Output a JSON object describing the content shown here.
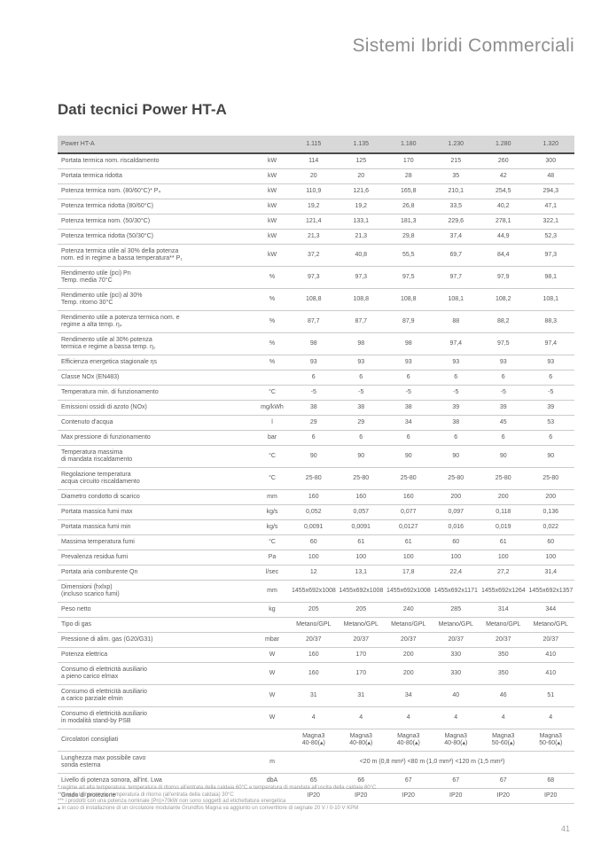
{
  "page": {
    "brand_header": "Sistemi Ibridi Commerciali",
    "section_title": "Dati tecnici Power HT-A",
    "page_number": "41"
  },
  "colors": {
    "table_header_bg": "#d8d8d8",
    "body_text": "#58585a",
    "brand_text": "#8e8e90",
    "header_rule": "#4a4a4c",
    "row_rule": "#cbcbcb"
  },
  "table": {
    "header": {
      "label": "Power HT-A",
      "unit": "",
      "models": [
        "1.115",
        "1.135",
        "1.180",
        "1.230",
        "1.280",
        "1.320"
      ]
    },
    "rows": [
      {
        "label": "Portata termica nom. riscaldamento",
        "unit": "kW",
        "values": [
          "114",
          "125",
          "170",
          "215",
          "260",
          "300"
        ]
      },
      {
        "label": "Portata termica ridotta",
        "unit": "kW",
        "values": [
          "20",
          "20",
          "28",
          "35",
          "42",
          "48"
        ]
      },
      {
        "label": "Potenza termica nom. (80/60°C)* P₄",
        "unit": "kW",
        "values": [
          "110,9",
          "121,6",
          "165,8",
          "210,1",
          "254,5",
          "294,3"
        ]
      },
      {
        "label": "Potenza termica ridotta (80/60°C)",
        "unit": "kW",
        "values": [
          "19,2",
          "19,2",
          "26,8",
          "33,5",
          "40,2",
          "47,1"
        ]
      },
      {
        "label": "Potenza termica nom. (50/30°C)",
        "unit": "kW",
        "values": [
          "121,4",
          "133,1",
          "181,3",
          "229,6",
          "278,1",
          "322,1"
        ]
      },
      {
        "label": "Potenza termica ridotta (50/30°C)",
        "unit": "kW",
        "values": [
          "21,3",
          "21,3",
          "29,8",
          "37,4",
          "44,9",
          "52,3"
        ]
      },
      {
        "label": "Potenza termica utile al 30% della potenza\nnom. ed in regime a bassa temperatura** P₁",
        "unit": "kW",
        "values": [
          "37,2",
          "40,8",
          "55,5",
          "69,7",
          "84,4",
          "97,3"
        ]
      },
      {
        "label": "Rendimento utile (pci) Pn\nTemp. media 70°C",
        "unit": "%",
        "values": [
          "97,3",
          "97,3",
          "97,5",
          "97,7",
          "97,9",
          "98,1"
        ]
      },
      {
        "label": "Rendimento utile (pci) al 30%\nTemp. ritorno 30°C",
        "unit": "%",
        "values": [
          "108,8",
          "108,8",
          "108,8",
          "108,1",
          "108,2",
          "108,1"
        ]
      },
      {
        "label": "Rendimento utile a potenza termica nom. e\nregime a alta temp. η₄",
        "unit": "%",
        "values": [
          "87,7",
          "87,7",
          "87,9",
          "88",
          "88,2",
          "88,3"
        ]
      },
      {
        "label": "Rendimento utile al 30% potenza\ntermica e regime a bassa temp. η₁",
        "unit": "%",
        "values": [
          "98",
          "98",
          "98",
          "97,4",
          "97,5",
          "97,4"
        ]
      },
      {
        "label": "Efficienza energetica stagionale ηs",
        "unit": "%",
        "values": [
          "93",
          "93",
          "93",
          "93",
          "93",
          "93"
        ]
      },
      {
        "label": "Classe NOx (EN483)",
        "unit": "",
        "values": [
          "6",
          "6",
          "6",
          "6",
          "6",
          "6"
        ]
      },
      {
        "label": "Temperatura min. di funzionamento",
        "unit": "°C",
        "values": [
          "-5",
          "-5",
          "-5",
          "-5",
          "-5",
          "-5"
        ]
      },
      {
        "label": "Emissioni ossidi di azoto (NOx)",
        "unit": "mg/kWh",
        "values": [
          "38",
          "38",
          "38",
          "39",
          "39",
          "39"
        ]
      },
      {
        "label": "Contenuto d'acqua",
        "unit": "l",
        "values": [
          "29",
          "29",
          "34",
          "38",
          "45",
          "53"
        ]
      },
      {
        "label": "Max pressione di funzionamento",
        "unit": "bar",
        "values": [
          "6",
          "6",
          "6",
          "6",
          "6",
          "6"
        ]
      },
      {
        "label": "Temperatura massima\ndi mandata riscaldamento",
        "unit": "°C",
        "values": [
          "90",
          "90",
          "90",
          "90",
          "90",
          "90"
        ]
      },
      {
        "label": "Regolazione temperatura\nacqua circuito riscaldamento",
        "unit": "°C",
        "values": [
          "25-80",
          "25-80",
          "25-80",
          "25-80",
          "25-80",
          "25-80"
        ]
      },
      {
        "label": "Diametro condotto di scarico",
        "unit": "mm",
        "values": [
          "160",
          "160",
          "160",
          "200",
          "200",
          "200"
        ]
      },
      {
        "label": "Portata massica fumi max",
        "unit": "kg/s",
        "values": [
          "0,052",
          "0,057",
          "0,077",
          "0,097",
          "0,118",
          "0,136"
        ]
      },
      {
        "label": "Portata massica fumi min",
        "unit": "kg/s",
        "values": [
          "0,0091",
          "0,0091",
          "0,0127",
          "0,016",
          "0,019",
          "0,022"
        ]
      },
      {
        "label": "Massima temperatura fumi",
        "unit": "°C",
        "values": [
          "60",
          "61",
          "61",
          "60",
          "61",
          "60"
        ]
      },
      {
        "label": "Prevalenza residua fumi",
        "unit": "Pa",
        "values": [
          "100",
          "100",
          "100",
          "100",
          "100",
          "100"
        ]
      },
      {
        "label": "Portata aria comburente Qn",
        "unit": "l/sec",
        "values": [
          "12",
          "13,1",
          "17,8",
          "22,4",
          "27,2",
          "31,4"
        ]
      },
      {
        "label": "Dimensioni (hxlxp)\n(incluso scarico fumi)",
        "unit": "mm",
        "values": [
          "1455x692x1008",
          "1455x692x1008",
          "1455x692x1008",
          "1455x692x1171",
          "1455x692x1264",
          "1455x692x1357"
        ]
      },
      {
        "label": "Peso netto",
        "unit": "kg",
        "values": [
          "205",
          "205",
          "240",
          "285",
          "314",
          "344"
        ]
      },
      {
        "label": "Tipo di gas",
        "unit": "",
        "values": [
          "Metano/GPL",
          "Metano/GPL",
          "Metano/GPL",
          "Metano/GPL",
          "Metano/GPL",
          "Metano/GPL"
        ]
      },
      {
        "label": "Pressione di alim. gas (G20/G31)",
        "unit": "mbar",
        "values": [
          "20/37",
          "20/37",
          "20/37",
          "20/37",
          "20/37",
          "20/37"
        ]
      },
      {
        "label": "Potenza elettrica",
        "unit": "W",
        "values": [
          "160",
          "170",
          "200",
          "330",
          "350",
          "410"
        ]
      },
      {
        "label": "Consumo di elettricità ausiliario\na pieno carico elmax",
        "unit": "W",
        "values": [
          "160",
          "170",
          "200",
          "330",
          "350",
          "410"
        ]
      },
      {
        "label": "Consumo di elettricità ausiliario\na carico parziale elmin",
        "unit": "W",
        "values": [
          "31",
          "31",
          "34",
          "40",
          "46",
          "51"
        ]
      },
      {
        "label": "Consumo di elettricità ausiliario\nin modalità stand-by PSB",
        "unit": "W",
        "values": [
          "4",
          "4",
          "4",
          "4",
          "4",
          "4"
        ]
      },
      {
        "label": "Circolatori consigliati",
        "unit": "",
        "values": [
          "Magna3\n40-80(▴)",
          "Magna3\n40-80(▴)",
          "Magna3\n40-80(▴)",
          "Magna3\n40-80(▴)",
          "Magna3\n50-60(▴)",
          "Magna3\n50-60(▴)"
        ]
      },
      {
        "label": "Lunghezza max possibile cavo\nsonda esterna",
        "unit": "m",
        "span_value": "<20 m (0,8 mm²) <80 m (1,0 mm²) <120 m (1,5 mm²)"
      },
      {
        "label": "Livello di potenza sonora, all'int. Lwa",
        "unit": "dbA",
        "values": [
          "65",
          "66",
          "67",
          "67",
          "67",
          "68"
        ]
      },
      {
        "label": "Grado di protezione",
        "unit": "",
        "values": [
          "IP20",
          "IP20",
          "IP20",
          "IP20",
          "IP20",
          "IP20"
        ]
      }
    ],
    "footnotes": [
      "* regime ad alta temperatura: temperatura di ritorno all'entrata della caldaia 60°C e temperatura di mandata all'uscita della caldaia 80°C",
      "** bassa temperatura: temperatura di ritorno (all'entrata della caldaia) 30°C",
      "*** i prodotti con una potenza nominale (Pn)>70kW non sono soggetti ad etichettatura energetica",
      "▴ in caso di installazione di un circolatore modulante Grundfos Magna va aggiunto un convertitore di segnale 20 V / 0-10 V KPM"
    ]
  }
}
